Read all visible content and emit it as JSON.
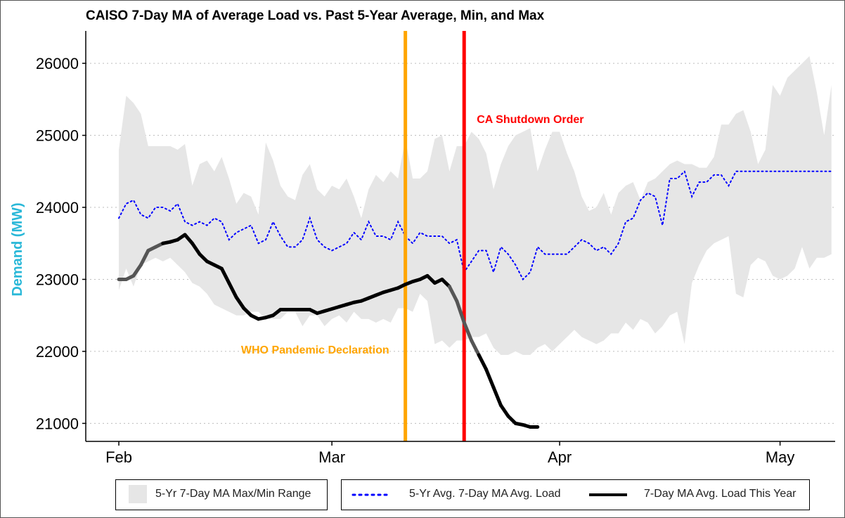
{
  "chart_data": {
    "type": "line",
    "title": "CAISO 7-Day MA of Average Load vs. Past 5-Year Average, Min, and Max",
    "xlabel": "",
    "ylabel": "Demand (MW)",
    "ylim": [
      20750,
      26450
    ],
    "y_ticks": [
      21000,
      22000,
      23000,
      24000,
      25000,
      26000
    ],
    "x_ticks": [
      "Feb",
      "Mar",
      "Apr",
      "May"
    ],
    "x_tick_days": [
      32,
      61,
      92,
      122
    ],
    "xlim": [
      27.5,
      129.5
    ],
    "grid": "horizontal-dotted",
    "x_unit": "day of year",
    "annotations": [
      {
        "label": "WHO Pandemic Declaration",
        "x": 71,
        "color": "#FFA500"
      },
      {
        "label": "CA Shutdown Order",
        "x": 79,
        "color": "#FF0000"
      }
    ],
    "series": [
      {
        "name": "5-Yr 7-Day MA Max/Min Range",
        "kind": "ribbon",
        "x": [
          32,
          33,
          34,
          35,
          36,
          37,
          38,
          39,
          40,
          41,
          42,
          43,
          44,
          45,
          46,
          47,
          48,
          49,
          50,
          51,
          52,
          53,
          54,
          55,
          56,
          57,
          58,
          59,
          60,
          61,
          62,
          63,
          64,
          65,
          66,
          67,
          68,
          69,
          70,
          71,
          72,
          73,
          74,
          75,
          76,
          77,
          78,
          79,
          80,
          81,
          82,
          83,
          84,
          85,
          86,
          87,
          88,
          89,
          90,
          91,
          92,
          93,
          94,
          95,
          96,
          97,
          98,
          99,
          100,
          101,
          102,
          103,
          104,
          105,
          106,
          107,
          108,
          109,
          110,
          111,
          112,
          113,
          114,
          115,
          116,
          117,
          118,
          119,
          120,
          121,
          122,
          123,
          124,
          125,
          126,
          127,
          128,
          129
        ],
        "upper": [
          24800,
          25550,
          25450,
          25300,
          24850,
          24850,
          24850,
          24850,
          24800,
          24880,
          24300,
          24600,
          24650,
          24500,
          24700,
          24400,
          24050,
          24200,
          24150,
          23900,
          24900,
          24650,
          24300,
          24150,
          24100,
          24450,
          24600,
          24250,
          24150,
          24300,
          24250,
          24400,
          24150,
          23850,
          24250,
          24450,
          24350,
          24500,
          24400,
          24950,
          24400,
          24400,
          24500,
          24950,
          25000,
          24500,
          24850,
          24850,
          25050,
          24950,
          24750,
          24250,
          24600,
          24850,
          25000,
          25050,
          25100,
          24500,
          24800,
          25050,
          25050,
          24750,
          24500,
          24150,
          23950,
          24000,
          24200,
          23900,
          24200,
          24300,
          24350,
          24100,
          24350,
          24400,
          24500,
          24600,
          24650,
          24600,
          24600,
          24550,
          24550,
          24700,
          25150,
          25150,
          25300,
          25350,
          25050,
          24600,
          24800,
          25700,
          25550,
          25800,
          25900,
          26000,
          26100,
          25600,
          25000,
          25700
        ],
        "lower": [
          22850,
          23150,
          22900,
          23200,
          23250,
          23300,
          23250,
          23300,
          23200,
          23100,
          22950,
          22900,
          22800,
          22650,
          22600,
          22550,
          22500,
          22500,
          22550,
          22550,
          22450,
          22450,
          22450,
          22550,
          22550,
          22350,
          22500,
          22500,
          22350,
          22450,
          22500,
          22400,
          22550,
          22450,
          22450,
          22400,
          22450,
          22400,
          22600,
          22600,
          22550,
          22800,
          22700,
          22100,
          22150,
          22050,
          22150,
          22150,
          22200,
          22200,
          22250,
          22050,
          21950,
          21950,
          22000,
          21950,
          21950,
          22050,
          22100,
          22000,
          22100,
          22200,
          22300,
          22200,
          22150,
          22100,
          22150,
          22250,
          22250,
          22400,
          22300,
          22450,
          22400,
          22250,
          22350,
          22500,
          22550,
          22100,
          22950,
          23200,
          23400,
          23500,
          23550,
          23600,
          22800,
          22750,
          23200,
          23300,
          23250,
          23050,
          23000,
          23050,
          23150,
          23450,
          23150,
          23300,
          23300,
          23350
        ]
      },
      {
        "name": "5-Yr Avg. 7-Day MA Avg. Load",
        "kind": "line-dotted",
        "color": "#0000FF",
        "x": [
          32,
          33,
          34,
          35,
          36,
          37,
          38,
          39,
          40,
          41,
          42,
          43,
          44,
          45,
          46,
          47,
          48,
          49,
          50,
          51,
          52,
          53,
          54,
          55,
          56,
          57,
          58,
          59,
          60,
          61,
          62,
          63,
          64,
          65,
          66,
          67,
          68,
          69,
          70,
          71,
          72,
          73,
          74,
          75,
          76,
          77,
          78,
          79,
          80,
          81,
          82,
          83,
          84,
          85,
          86,
          87,
          88,
          89,
          90,
          91,
          92,
          93,
          94,
          95,
          96,
          97,
          98,
          99,
          100,
          101,
          102,
          103,
          104,
          105,
          106,
          107,
          108,
          109,
          110,
          111,
          112,
          113,
          114,
          115,
          116,
          117,
          118,
          119,
          120,
          121,
          122,
          123,
          124,
          125,
          126,
          127,
          128,
          129
        ],
        "values": [
          23850,
          24050,
          24100,
          23900,
          23850,
          24000,
          24000,
          23950,
          24050,
          23800,
          23750,
          23800,
          23750,
          23850,
          23800,
          23550,
          23650,
          23700,
          23750,
          23500,
          23550,
          23800,
          23600,
          23450,
          23450,
          23550,
          23850,
          23550,
          23450,
          23400,
          23450,
          23500,
          23650,
          23550,
          23800,
          23600,
          23600,
          23550,
          23800,
          23600,
          23500,
          23650,
          23600,
          23600,
          23600,
          23500,
          23550,
          23100,
          23250,
          23400,
          23400,
          23100,
          23450,
          23350,
          23200,
          23000,
          23100,
          23450,
          23350,
          23350,
          23350,
          23350,
          23450,
          23550,
          23500,
          23400,
          23450,
          23350,
          23500,
          23800,
          23850,
          24100,
          24200,
          24150,
          23750,
          24400,
          24400,
          24500,
          24150,
          24350,
          24350,
          24450,
          24450,
          24300,
          24500,
          24500,
          24500,
          24500,
          24500,
          24500,
          24500,
          24500,
          24500,
          24500,
          24500,
          24500,
          24500,
          24500
        ],
        "x_end": 129
      },
      {
        "name": "7-Day MA Avg. Load This Year",
        "kind": "line",
        "color": "#000000",
        "x": [
          32,
          33,
          34,
          35,
          36,
          37,
          38,
          39,
          40,
          41,
          42,
          43,
          44,
          45,
          46,
          47,
          48,
          49,
          50,
          51,
          52,
          53,
          54,
          55,
          56,
          57,
          58,
          59,
          60,
          61,
          62,
          63,
          64,
          65,
          66,
          67,
          68,
          69,
          70,
          71,
          72,
          73,
          74,
          75,
          76,
          77,
          78,
          79,
          80,
          81,
          82,
          83,
          84,
          85,
          86,
          87,
          88,
          89
        ],
        "values": [
          23000,
          23000,
          23050,
          23200,
          23400,
          23450,
          23500,
          23520,
          23550,
          23620,
          23500,
          23350,
          23250,
          23200,
          23150,
          22950,
          22750,
          22600,
          22500,
          22450,
          22470,
          22500,
          22580,
          22580,
          22580,
          22580,
          22580,
          22530,
          22560,
          22590,
          22620,
          22650,
          22680,
          22700,
          22740,
          22780,
          22820,
          22850,
          22880,
          22930,
          22970,
          23000,
          23050,
          22950,
          23000,
          22900,
          22700,
          22400,
          22150,
          21950,
          21750,
          21500,
          21250,
          21100,
          21000,
          20980,
          20950,
          20950
        ]
      }
    ]
  },
  "legend": {
    "range_label": "5-Yr 7-Day MA Max/Min Range",
    "avg_label": "5-Yr Avg. 7-Day MA Avg. Load",
    "this_year_label": "7-Day MA Avg. Load This Year"
  }
}
